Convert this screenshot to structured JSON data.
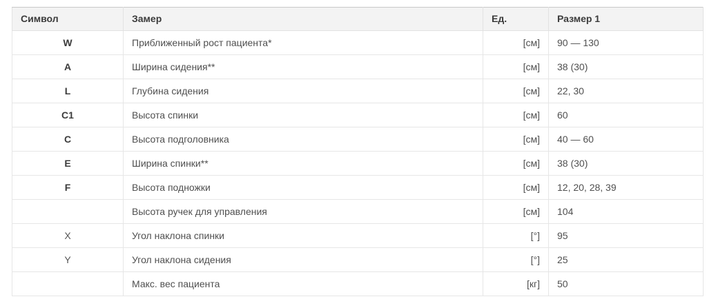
{
  "table": {
    "columns": [
      "Символ",
      "Замер",
      "Ед.",
      "Размер 1"
    ],
    "rows": [
      {
        "symbol": "W",
        "bold": true,
        "name": "Приближенный рост пациента*",
        "unit": "[см]",
        "value": "90 — 130"
      },
      {
        "symbol": "A",
        "bold": true,
        "name": "Ширина сидения**",
        "unit": "[см]",
        "value": "38 (30)"
      },
      {
        "symbol": "L",
        "bold": true,
        "name": "Глубина сидения",
        "unit": "[см]",
        "value": "22, 30"
      },
      {
        "symbol": "C1",
        "bold": true,
        "name": "Высота спинки",
        "unit": "[см]",
        "value": "60"
      },
      {
        "symbol": "C",
        "bold": true,
        "name": "Высота подголовника",
        "unit": "[см]",
        "value": "40 — 60"
      },
      {
        "symbol": "E",
        "bold": true,
        "name": "Ширина спинки**",
        "unit": "[см]",
        "value": "38 (30)"
      },
      {
        "symbol": "F",
        "bold": true,
        "name": "Высота подножки",
        "unit": "[см]",
        "value": "12, 20, 28, 39"
      },
      {
        "symbol": "",
        "bold": false,
        "name": "Высота ручек для управления",
        "unit": "[см]",
        "value": "104"
      },
      {
        "symbol": "X",
        "bold": false,
        "name": "Угол наклона спинки",
        "unit": "[°]",
        "value": "95"
      },
      {
        "symbol": "Y",
        "bold": false,
        "name": "Угол наклона сидения",
        "unit": "[°]",
        "value": "25"
      },
      {
        "symbol": "",
        "bold": false,
        "name": "Макс. вес пациента",
        "unit": "[кг]",
        "value": "50"
      }
    ]
  }
}
